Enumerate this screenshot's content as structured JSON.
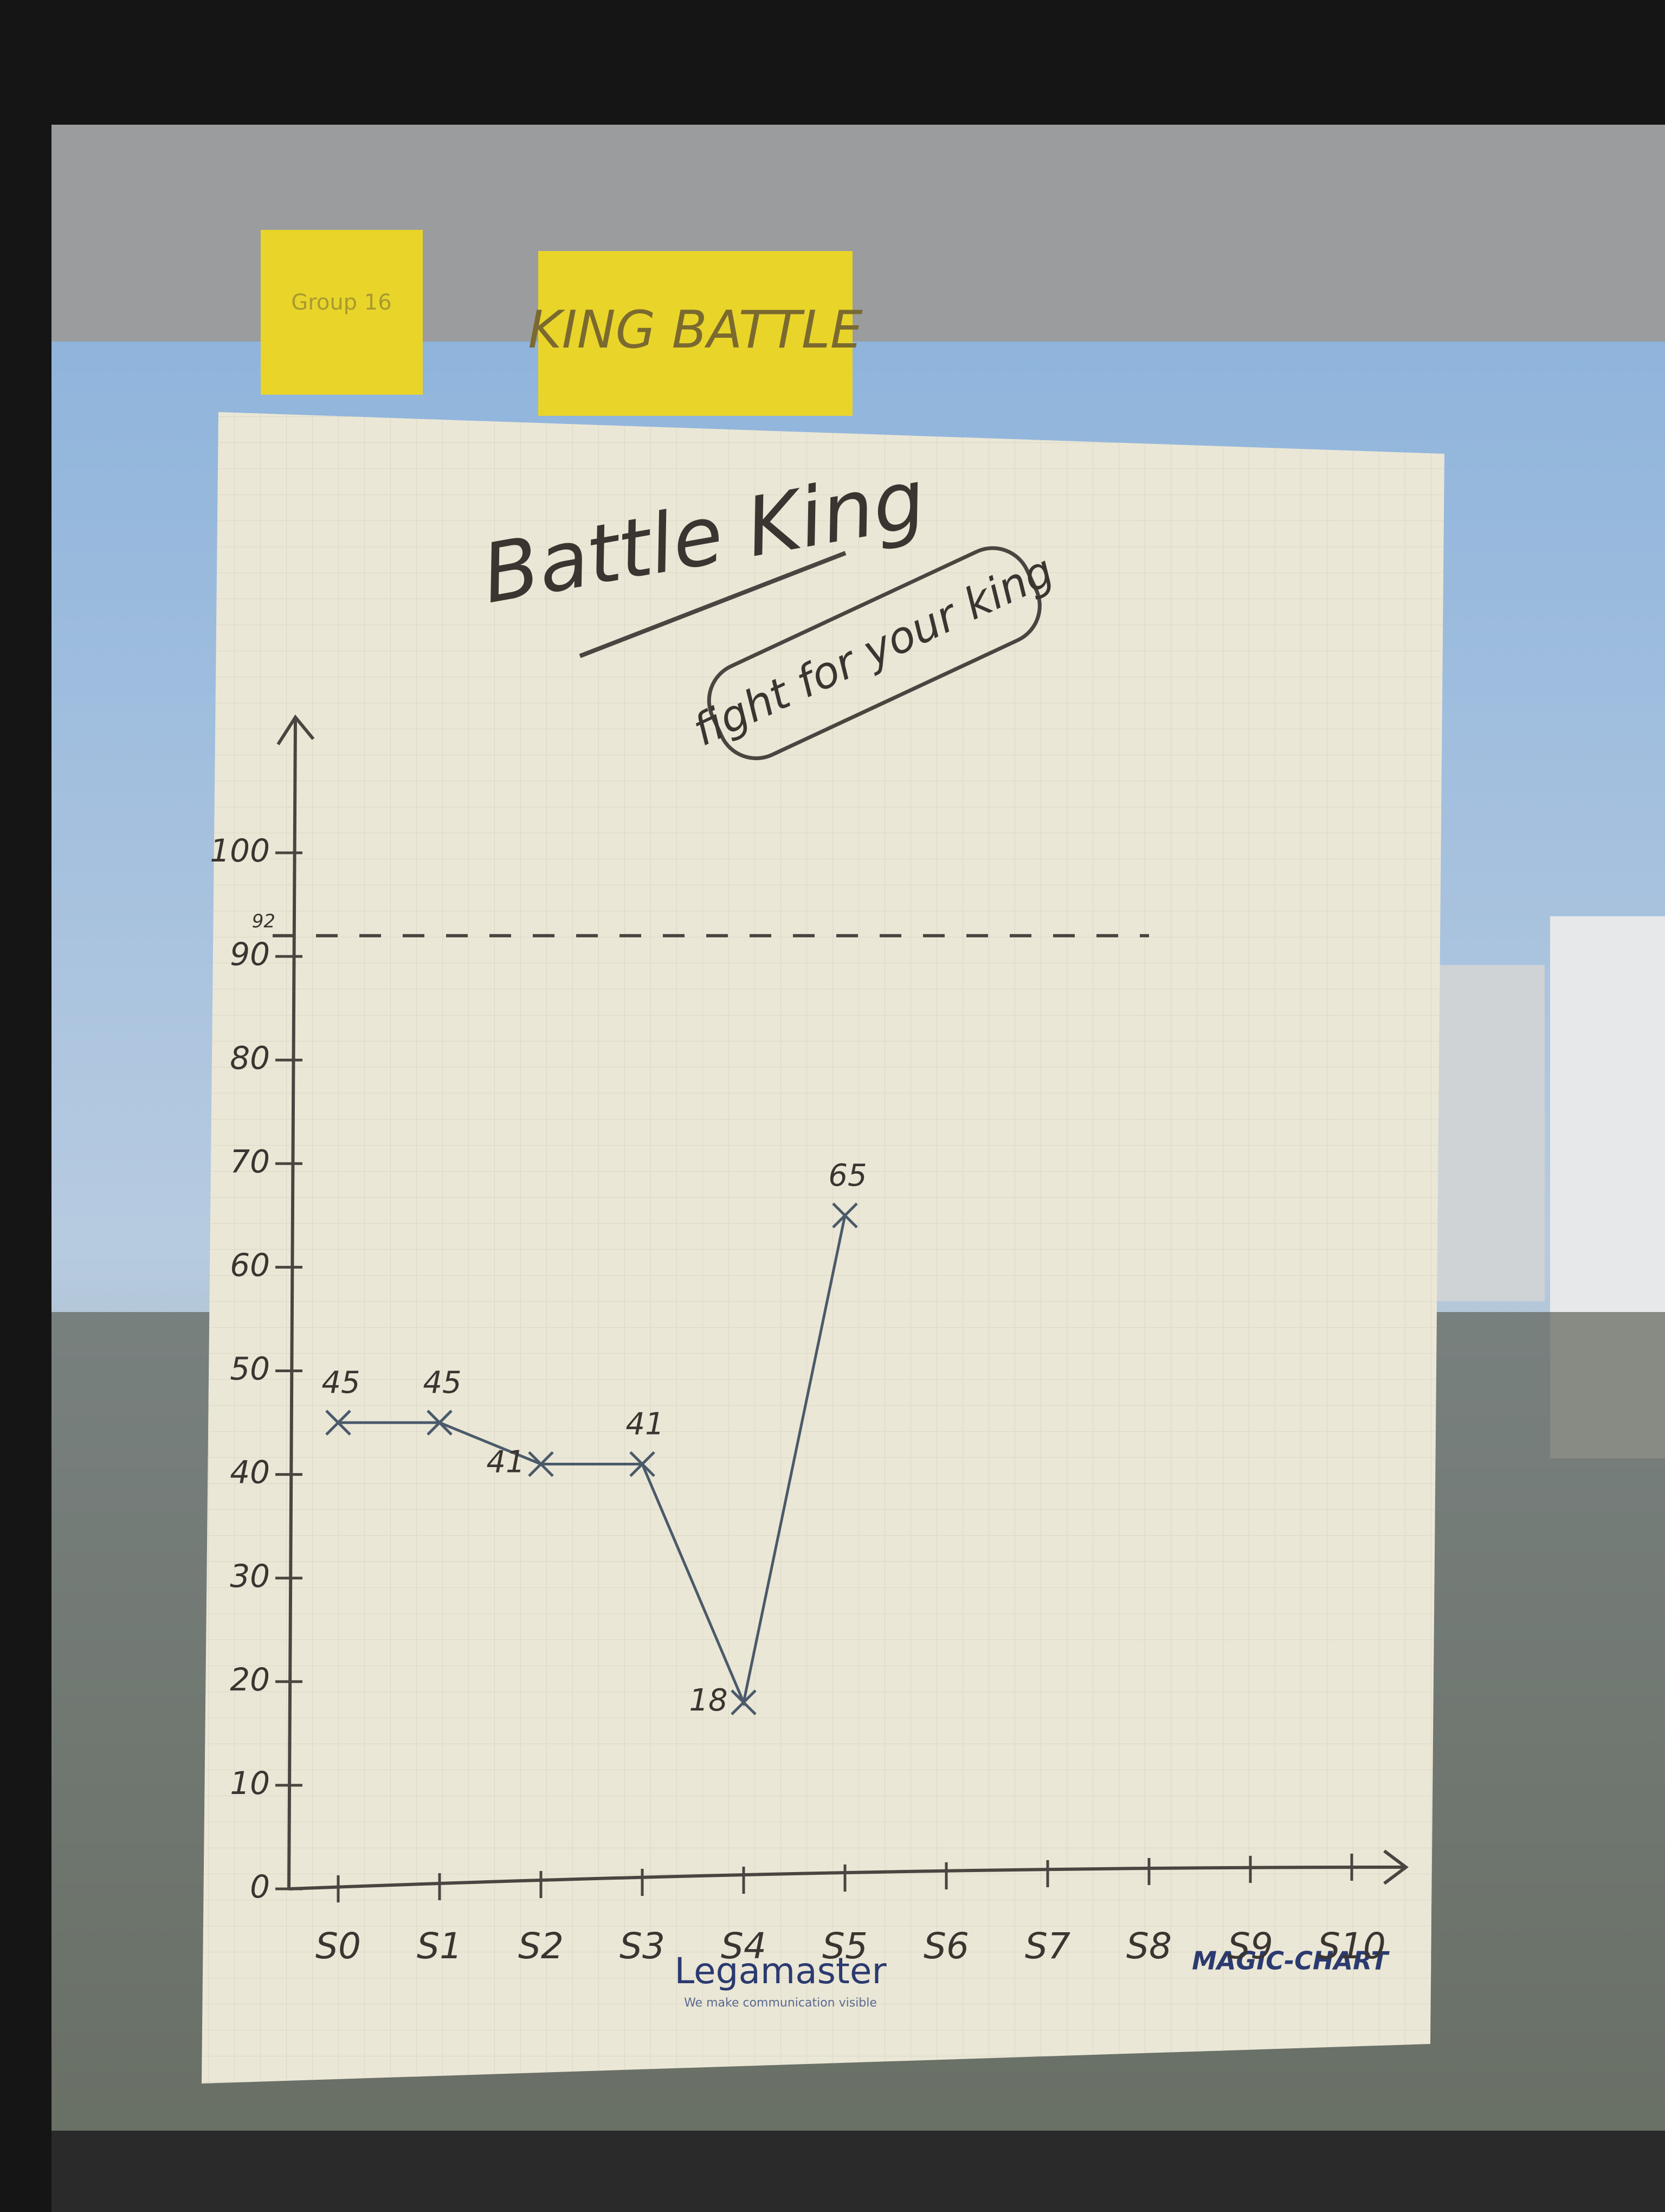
{
  "chart_data": {
    "type": "line",
    "title": "Battle King",
    "subtitle": "fight for your king",
    "categories": [
      "S0",
      "S1",
      "S2",
      "S3",
      "S4",
      "S5",
      "S6",
      "S7",
      "S8",
      "S9",
      "S10"
    ],
    "values": [
      45,
      45,
      41,
      41,
      18,
      65,
      null,
      null,
      null,
      null,
      null
    ],
    "color": "#4a5a6a",
    "ylim": [
      0,
      100
    ],
    "yticks": [
      0,
      10,
      20,
      30,
      40,
      50,
      60,
      70,
      80,
      90,
      100
    ],
    "reference_line": 92,
    "grid": false
  },
  "sticky_notes": {
    "left": "Group 16",
    "right": "KING BATTLE"
  },
  "branding": {
    "brand": "Legamaster",
    "tagline": "We make communication visible",
    "product": "MAGIC-CHART"
  }
}
